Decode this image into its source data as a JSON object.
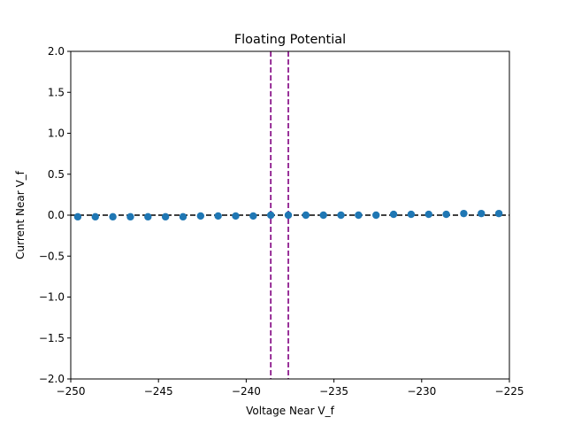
{
  "chart_data": {
    "type": "scatter",
    "title": "Floating Potential",
    "xlabel": "Voltage Near V_f",
    "ylabel": "Current Near V_f",
    "xlim": [
      -250,
      -225
    ],
    "ylim": [
      -2.0,
      2.0
    ],
    "xticks": [
      -250,
      -245,
      -240,
      -235,
      -230,
      -225
    ],
    "xtick_labels": [
      "−250",
      "−245",
      "−240",
      "−235",
      "−230",
      "−225"
    ],
    "yticks": [
      -2.0,
      -1.5,
      -1.0,
      -0.5,
      0.0,
      0.5,
      1.0,
      1.5,
      2.0
    ],
    "ytick_labels": [
      "−2.0",
      "−1.5",
      "−1.0",
      "−0.5",
      "0.0",
      "0.5",
      "1.0",
      "1.5",
      "2.0"
    ],
    "grid": false,
    "legend": false,
    "series": [
      {
        "marker": "circle",
        "color": "#1f77b4",
        "x": [
          -249.6,
          -248.6,
          -247.6,
          -246.6,
          -245.6,
          -244.6,
          -243.6,
          -242.6,
          -241.6,
          -240.6,
          -239.6,
          -238.6,
          -237.6,
          -236.6,
          -235.6,
          -234.6,
          -233.6,
          -232.6,
          -231.6,
          -230.6,
          -229.6,
          -228.6,
          -227.6,
          -226.6,
          -225.6
        ],
        "y": [
          -0.02,
          -0.02,
          -0.02,
          -0.02,
          -0.02,
          -0.02,
          -0.02,
          -0.01,
          -0.01,
          -0.01,
          -0.01,
          0.0,
          0.0,
          0.0,
          0.0,
          0.0,
          0.0,
          0.0,
          0.01,
          0.01,
          0.01,
          0.01,
          0.02,
          0.02,
          0.02
        ]
      }
    ],
    "reference_lines": [
      {
        "orientation": "horizontal",
        "value": 0.0,
        "style": "dashed",
        "color": "#000000"
      },
      {
        "orientation": "vertical",
        "value": -238.6,
        "style": "dashed",
        "color": "#800080"
      },
      {
        "orientation": "vertical",
        "value": -237.6,
        "style": "dashed",
        "color": "#800080"
      }
    ]
  }
}
